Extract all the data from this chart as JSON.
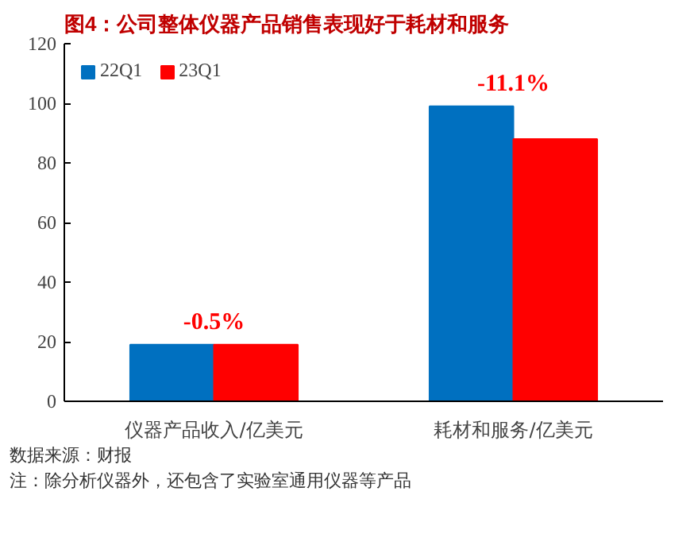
{
  "chart_data": {
    "type": "bar",
    "title": "图4：公司整体仪器产品销售表现好于耗材和服务",
    "categories": [
      "仪器产品收入/亿美元",
      "耗材和服务/亿美元"
    ],
    "series": [
      {
        "name": "22Q1",
        "color": "#0070c0",
        "values": [
          19,
          99
        ]
      },
      {
        "name": "23Q1",
        "color": "#ff0000",
        "values": [
          19,
          88
        ]
      }
    ],
    "ylim": [
      0,
      120
    ],
    "yticks": [
      0,
      20,
      40,
      60,
      80,
      100,
      120
    ],
    "grid": false,
    "legend": "top left",
    "annotations": [
      {
        "text": "-0.5%",
        "x": "仪器产品收入/亿美元",
        "y": 19
      },
      {
        "text": "-11.1%",
        "x": "耗材和服务/亿美元",
        "y": 99
      },
      "数据来源：财报",
      "注：除分析仪器外，还包含了实验室通用仪器等产品"
    ]
  }
}
